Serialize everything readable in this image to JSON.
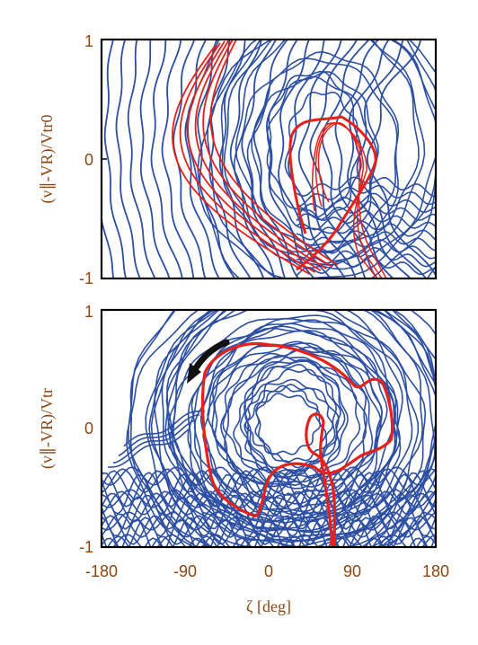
{
  "chart_data": [
    {
      "type": "line",
      "panel": "top",
      "ylabel": "(v∥-VR)/Vtr0",
      "xlabel": "",
      "xlim": [
        -180,
        180
      ],
      "ylim": [
        -1,
        1
      ],
      "yticks": [
        "1",
        "0",
        "-1"
      ],
      "xticks": [],
      "grid": false,
      "series": [
        {
          "color": "#2d4fa3",
          "role": "background-trajectories"
        },
        {
          "color": "#e8201a",
          "role": "highlighted-trajectories"
        }
      ]
    },
    {
      "type": "line",
      "panel": "bottom",
      "ylabel": "(v∥-VR)/Vtr",
      "xlabel": "ζ [deg]",
      "xlim": [
        -180,
        180
      ],
      "ylim": [
        -1,
        1
      ],
      "yticks": [
        "1",
        "0",
        "-1"
      ],
      "xticks": [
        "-180",
        "-90",
        "0",
        "90",
        "180"
      ],
      "grid": false,
      "series": [
        {
          "color": "#2d4fa3",
          "role": "background-trajectories"
        },
        {
          "color": "#e8201a",
          "role": "highlighted-trajectories"
        }
      ],
      "annotation": {
        "type": "arrow",
        "color": "#111111",
        "direction": "counter-clockwise"
      }
    }
  ]
}
